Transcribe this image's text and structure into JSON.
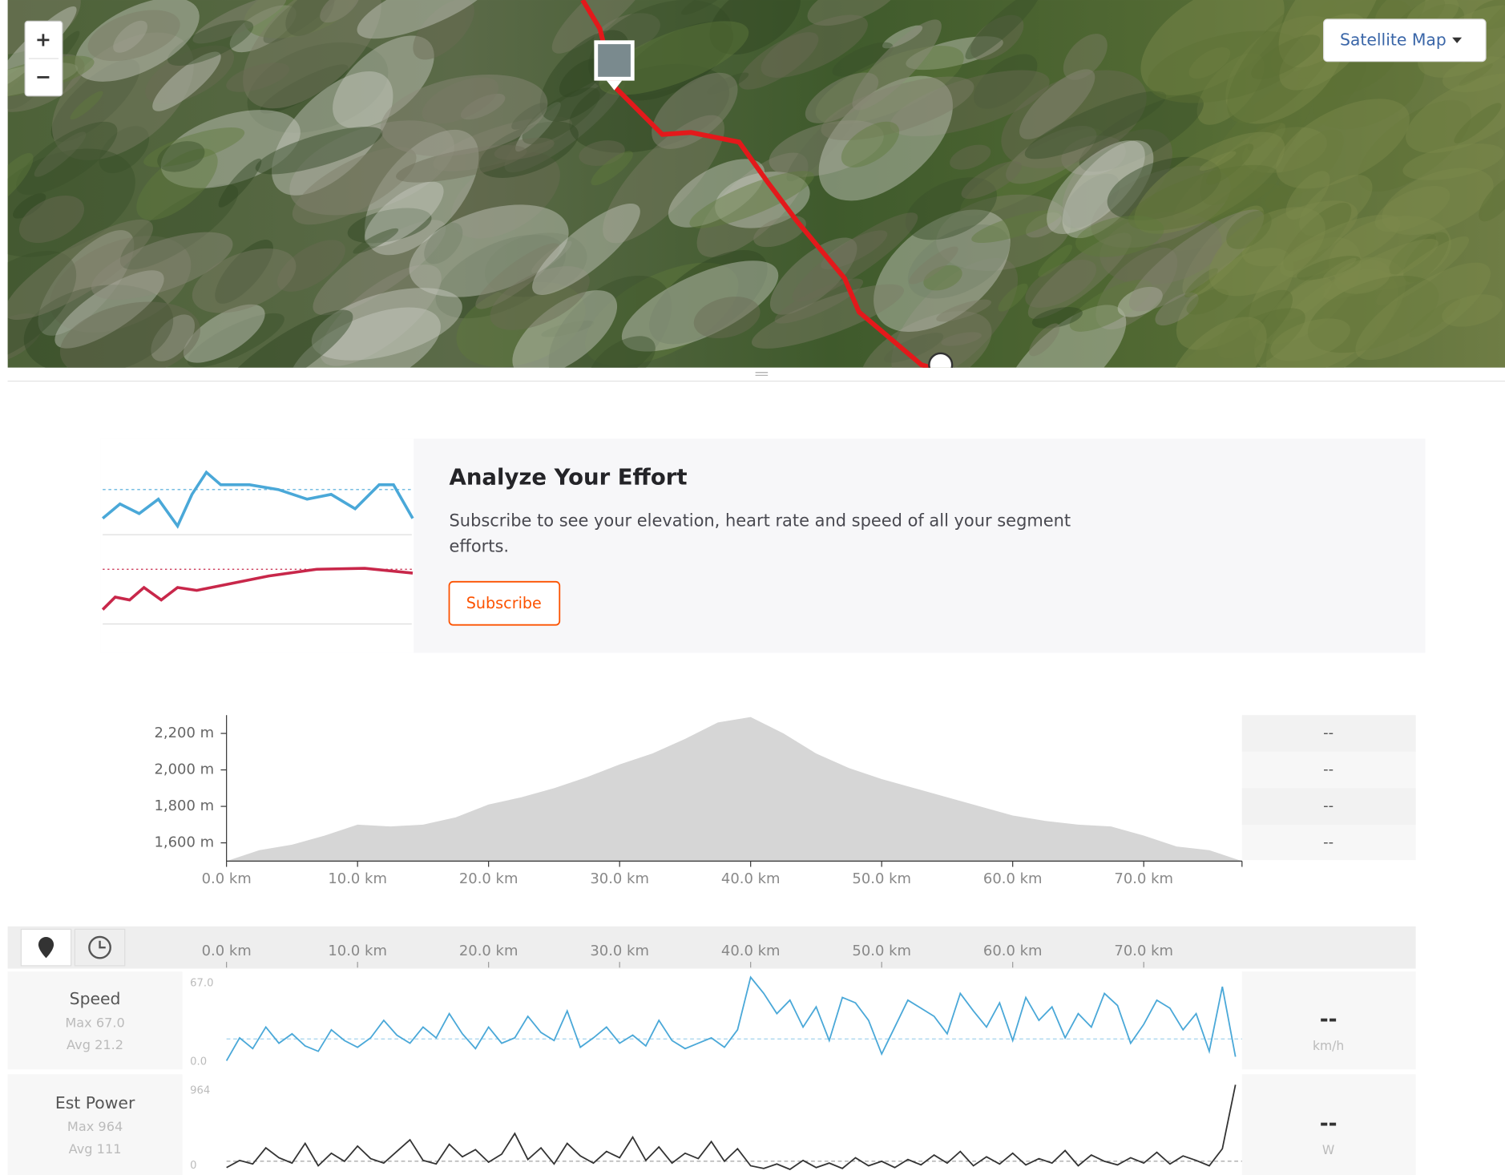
{
  "map": {
    "zoom_in": "+",
    "zoom_out": "−",
    "layer_button": "Satellite Map"
  },
  "promo": {
    "title": "Analyze Your Effort",
    "text_line1": "Subscribe to see your elevation, heart rate and speed of all your segment",
    "text_line2": "efforts.",
    "button": "Subscribe"
  },
  "elevation_chart": {
    "type": "area",
    "color": "#d6d6d6",
    "x": [
      0,
      2.5,
      5,
      7.5,
      10,
      12.5,
      15,
      17.5,
      20,
      22.5,
      25,
      27.5,
      30,
      32.5,
      35,
      37.5,
      40,
      42.5,
      45,
      47.5,
      50,
      52.5,
      55,
      57.5,
      60,
      62.5,
      65,
      67.5,
      70,
      72.5,
      75,
      77.5
    ],
    "values": [
      1500,
      1560,
      1590,
      1640,
      1700,
      1690,
      1700,
      1740,
      1810,
      1850,
      1900,
      1960,
      2030,
      2090,
      2170,
      2260,
      2290,
      2200,
      2090,
      2010,
      1950,
      1900,
      1850,
      1800,
      1750,
      1720,
      1700,
      1690,
      1640,
      1580,
      1560,
      1500
    ],
    "xlim": [
      0,
      77.5
    ],
    "ylim": [
      1500,
      2300
    ],
    "yticks": [
      {
        "value": 1600,
        "label": "1,600 m"
      },
      {
        "value": 1800,
        "label": "1,800 m"
      },
      {
        "value": 2000,
        "label": "2,000 m"
      },
      {
        "value": 2200,
        "label": "2,200 m"
      }
    ],
    "xticks": [
      {
        "value": 0,
        "label": "0.0 km"
      },
      {
        "value": 10,
        "label": "10.0 km"
      },
      {
        "value": 20,
        "label": "20.0 km"
      },
      {
        "value": 30,
        "label": "30.0 km"
      },
      {
        "value": 40,
        "label": "40.0 km"
      },
      {
        "value": 50,
        "label": "50.0 km"
      },
      {
        "value": 60,
        "label": "60.0 km"
      },
      {
        "value": 70,
        "label": "70.0 km"
      }
    ],
    "side_values": [
      "--",
      "--",
      "--",
      "--"
    ]
  },
  "streams": [
    {
      "type": "line",
      "name": "Speed",
      "color": "#4aa8d8",
      "max": "Max 67.0",
      "avg": {
        "value": 21.2,
        "label": "Avg 21.2"
      },
      "x": [
        0,
        1,
        2,
        3,
        4,
        5,
        6,
        7,
        8,
        9,
        10,
        11,
        12,
        13,
        14,
        15,
        16,
        17,
        18,
        19,
        20,
        21,
        22,
        23,
        24,
        25,
        26,
        27,
        28,
        29,
        30,
        31,
        32,
        33,
        34,
        35,
        36,
        37,
        38,
        39,
        40,
        41,
        42,
        43,
        44,
        45,
        46,
        47,
        48,
        49,
        50,
        51,
        52,
        53,
        54,
        55,
        56,
        57,
        58,
        59,
        60,
        61,
        62,
        63,
        64,
        65,
        66,
        67,
        68,
        69,
        70,
        71,
        72,
        73,
        74,
        75,
        76,
        77
      ],
      "values": [
        5,
        22,
        14,
        30,
        18,
        25,
        16,
        12,
        28,
        20,
        15,
        22,
        35,
        24,
        18,
        30,
        22,
        40,
        25,
        14,
        30,
        18,
        22,
        38,
        26,
        20,
        42,
        15,
        22,
        30,
        18,
        24,
        16,
        35,
        20,
        14,
        18,
        22,
        15,
        28,
        67,
        55,
        40,
        50,
        30,
        45,
        20,
        52,
        48,
        35,
        10,
        30,
        50,
        44,
        38,
        25,
        55,
        42,
        30,
        48,
        20,
        52,
        35,
        45,
        22,
        40,
        30,
        55,
        46,
        18,
        32,
        50,
        44,
        28,
        40,
        12,
        60,
        8
      ],
      "ylim": [
        0,
        67
      ],
      "yticks": [
        {
          "value": 0,
          "label": "0.0"
        },
        {
          "value": 67,
          "label": "67.0"
        }
      ],
      "current": "--",
      "unit": "km/h"
    },
    {
      "type": "line",
      "name": "Est Power",
      "color": "#333333",
      "max": "Max 964",
      "avg": {
        "value": 111,
        "label": "Avg 111"
      },
      "x": [
        0,
        1,
        2,
        3,
        4,
        5,
        6,
        7,
        8,
        9,
        10,
        11,
        12,
        13,
        14,
        15,
        16,
        17,
        18,
        19,
        20,
        21,
        22,
        23,
        24,
        25,
        26,
        27,
        28,
        29,
        30,
        31,
        32,
        33,
        34,
        35,
        36,
        37,
        38,
        39,
        40,
        41,
        42,
        43,
        44,
        45,
        46,
        47,
        48,
        49,
        50,
        51,
        52,
        53,
        54,
        55,
        56,
        57,
        58,
        59,
        60,
        61,
        62,
        63,
        64,
        65,
        66,
        67,
        68,
        69,
        70,
        71,
        72,
        73,
        74,
        75,
        76,
        77
      ],
      "values": [
        40,
        120,
        80,
        260,
        150,
        90,
        310,
        60,
        200,
        110,
        280,
        140,
        90,
        220,
        350,
        120,
        80,
        300,
        160,
        240,
        100,
        190,
        420,
        130,
        260,
        80,
        310,
        170,
        90,
        220,
        150,
        380,
        120,
        270,
        90,
        200,
        140,
        330,
        110,
        250,
        60,
        30,
        80,
        20,
        120,
        40,
        90,
        30,
        150,
        60,
        110,
        40,
        130,
        70,
        180,
        90,
        220,
        60,
        160,
        80,
        200,
        70,
        140,
        90,
        230,
        60,
        180,
        110,
        70,
        150,
        90,
        210,
        80,
        170,
        120,
        60,
        250,
        964
      ],
      "ylim": [
        0,
        964
      ],
      "yticks": [
        0,
        964
      ],
      "current": "--",
      "unit": "W"
    }
  ]
}
